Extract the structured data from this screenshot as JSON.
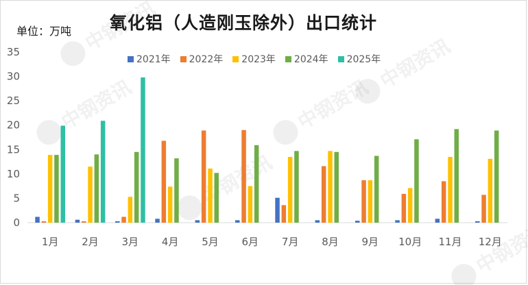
{
  "header": {
    "title": "氧化铝（人造刚玉除外）出口统计",
    "unit_label": "单位：万吨"
  },
  "colors": {
    "2021年": "#4472c4",
    "2022年": "#ed7d31",
    "2023年": "#ffc000",
    "2024年": "#70ad47",
    "2025年": "#2ebfa5"
  },
  "chart_data": {
    "type": "bar",
    "title": "氧化铝（人造刚玉除外）出口统计",
    "ylabel": "单位：万吨",
    "xlabel": "",
    "ylim": [
      0,
      35
    ],
    "yticks": [
      0,
      5,
      10,
      15,
      20,
      25,
      30,
      35
    ],
    "grid": false,
    "legend_position": "top",
    "categories": [
      "1月",
      "2月",
      "3月",
      "4月",
      "5月",
      "6月",
      "7月",
      "8月",
      "9月",
      "10月",
      "11月",
      "12月"
    ],
    "series": [
      {
        "name": "2021年",
        "values": [
          1.2,
          0.6,
          0.3,
          0.8,
          0.5,
          0.5,
          5.1,
          0.5,
          0.4,
          0.5,
          0.8,
          0.3
        ]
      },
      {
        "name": "2022年",
        "values": [
          0.3,
          0.3,
          1.2,
          16.8,
          18.9,
          19.0,
          3.6,
          11.6,
          8.7,
          5.9,
          8.5,
          5.7
        ]
      },
      {
        "name": "2023年",
        "values": [
          13.9,
          11.5,
          5.3,
          7.4,
          11.1,
          7.5,
          13.5,
          14.7,
          8.7,
          7.1,
          13.5,
          13.1
        ]
      },
      {
        "name": "2024年",
        "values": [
          13.9,
          14.0,
          14.5,
          13.2,
          10.2,
          15.9,
          14.7,
          14.5,
          13.7,
          17.1,
          19.2,
          18.9
        ]
      },
      {
        "name": "2025年",
        "values": [
          19.9,
          20.9,
          29.8,
          null,
          null,
          null,
          null,
          null,
          null,
          null,
          null,
          null
        ]
      }
    ]
  },
  "watermark": {
    "text": "中钢资讯"
  }
}
